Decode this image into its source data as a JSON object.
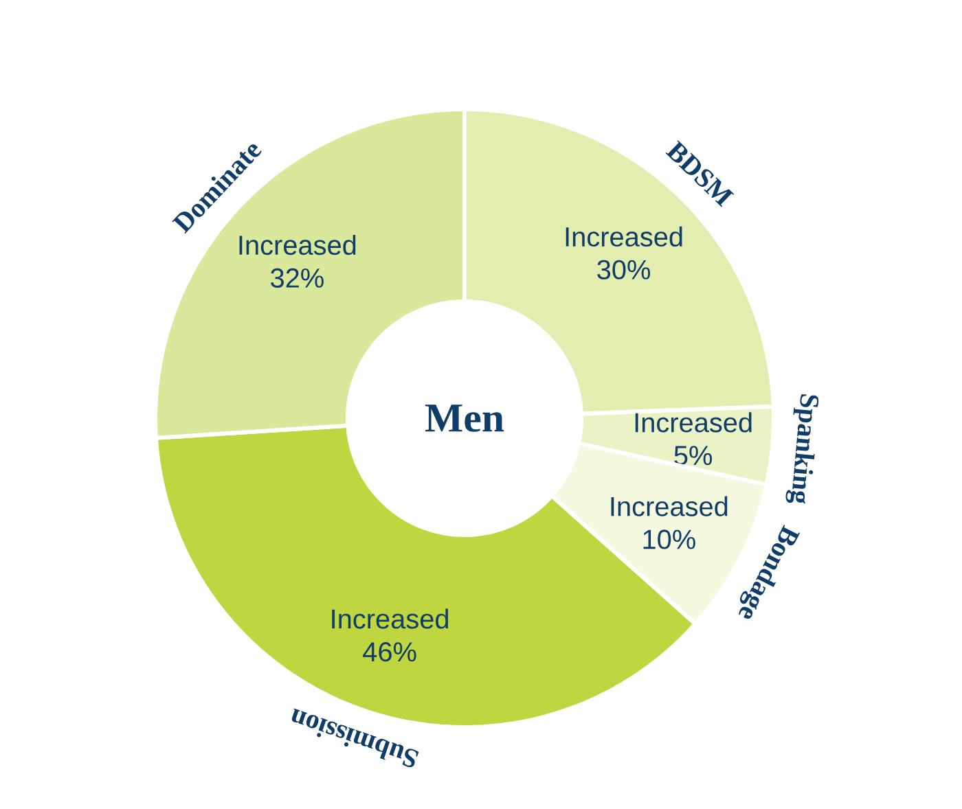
{
  "chart_data": {
    "type": "donut",
    "title": "Men",
    "categories": [
      "BDSM",
      "Spanking",
      "Bondage",
      "Submission",
      "Dominate"
    ],
    "values": [
      30,
      5,
      10,
      46,
      32
    ],
    "value_labels": [
      "Increased 30%",
      "Increased 5%",
      "Increased 10%",
      "Increased 46%",
      "Increased 32%"
    ],
    "colors": [
      "#e3edb0",
      "#ebf3c6",
      "#f5f9e0",
      "#bfd641",
      "#d9e89a"
    ]
  }
}
